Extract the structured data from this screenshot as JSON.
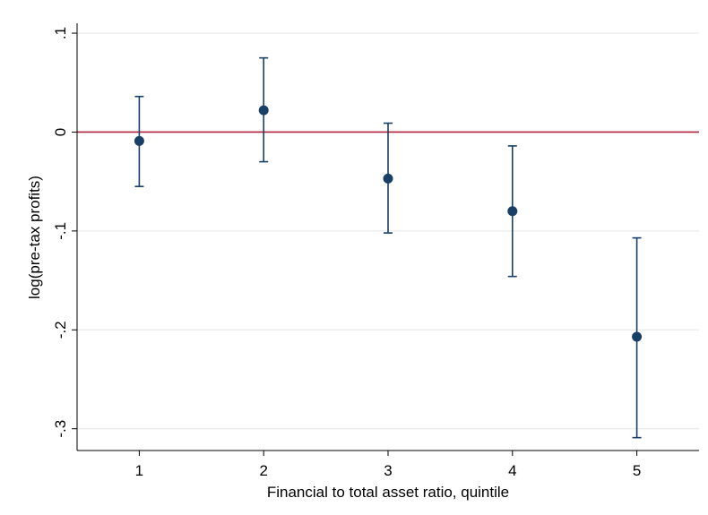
{
  "chart_data": {
    "type": "scatter",
    "subtype": "coefficient-plot-with-confidence-intervals",
    "title": "",
    "xlabel": "Financial to total asset ratio, quintile",
    "ylabel": "log(pre-tax profits)",
    "x_ticks": [
      "1",
      "2",
      "3",
      "4",
      "5"
    ],
    "y_ticks": [
      {
        "value": 0.1,
        "label": ".1"
      },
      {
        "value": 0.0,
        "label": "0"
      },
      {
        "value": -0.1,
        "label": "-.1"
      },
      {
        "value": -0.2,
        "label": "-.2"
      },
      {
        "value": -0.3,
        "label": "-.3"
      }
    ],
    "xlim": [
      0.5,
      5.5
    ],
    "ylim": [
      -0.322,
      0.11
    ],
    "grid": true,
    "reference_line": {
      "y": 0,
      "color": "#b0203c"
    },
    "point_color": "#1a3f66",
    "points": [
      {
        "x": 1,
        "y": -0.009,
        "lower": -0.055,
        "upper": 0.036
      },
      {
        "x": 2,
        "y": 0.022,
        "lower": -0.03,
        "upper": 0.075
      },
      {
        "x": 3,
        "y": -0.047,
        "lower": -0.102,
        "upper": 0.009
      },
      {
        "x": 4,
        "y": -0.08,
        "lower": -0.146,
        "upper": -0.014
      },
      {
        "x": 5,
        "y": -0.207,
        "lower": -0.309,
        "upper": -0.107
      }
    ]
  }
}
